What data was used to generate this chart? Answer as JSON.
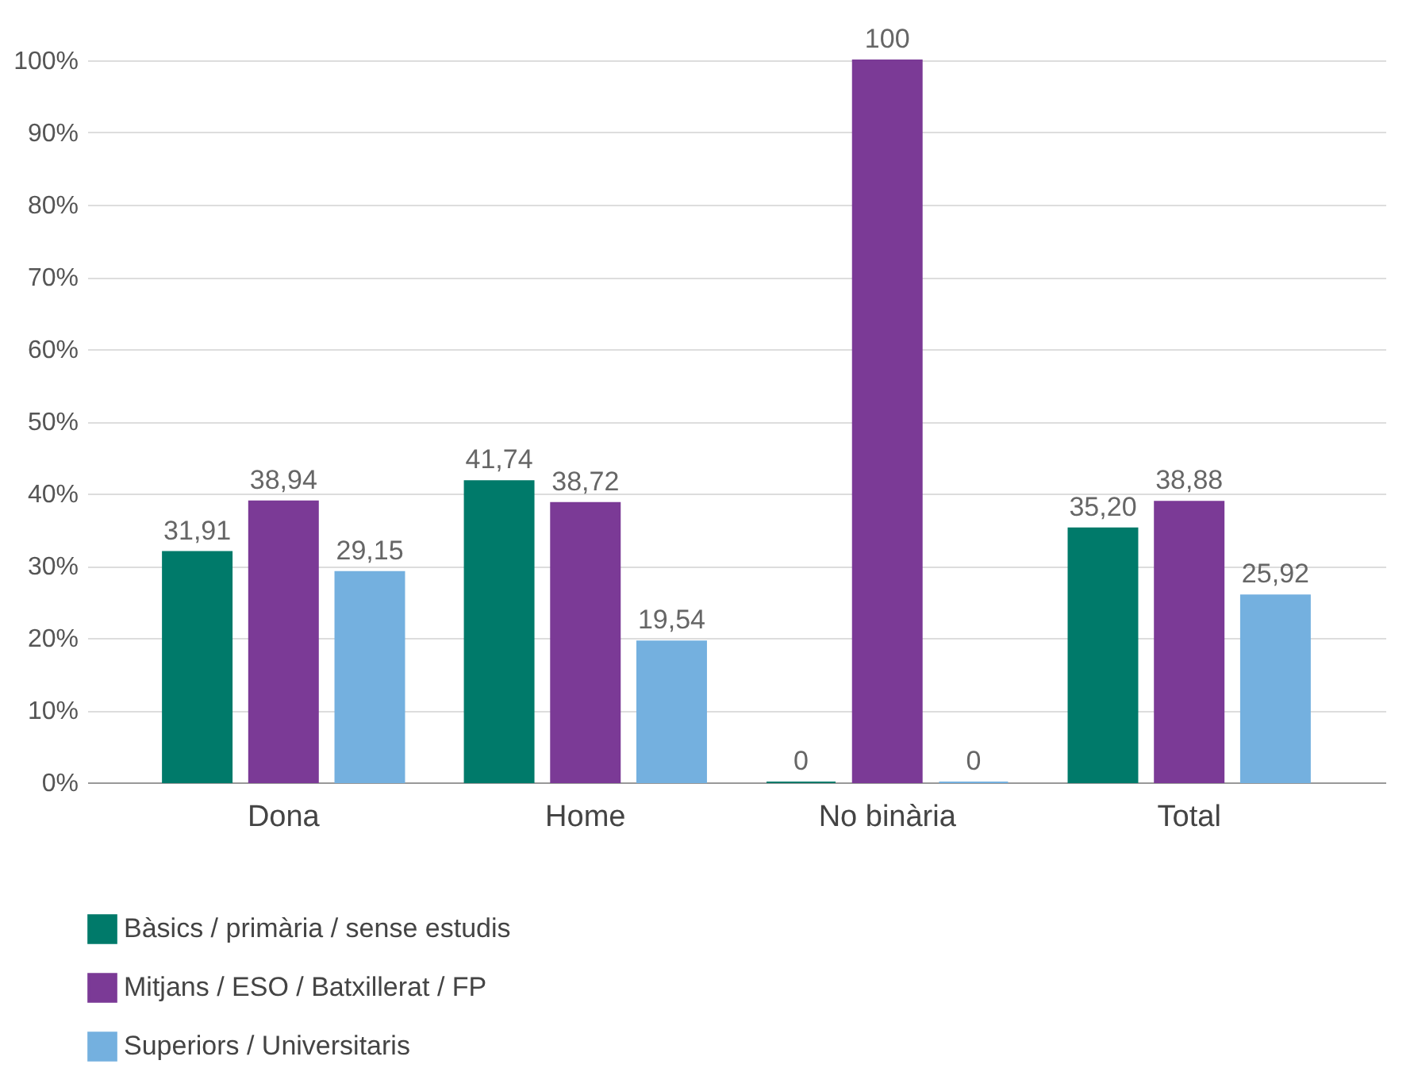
{
  "chart_data": {
    "type": "bar",
    "categories": [
      "Dona",
      "Home",
      "No binària",
      "Total"
    ],
    "series": [
      {
        "name": "Bàsics / primària / sense estudis",
        "color": "#007a6a",
        "values": [
          31.91,
          41.74,
          0,
          35.2
        ],
        "value_labels": [
          "31,91",
          "41,74",
          "0",
          "35,20"
        ]
      },
      {
        "name": "Mitjans / ESO / Batxillerat / FP",
        "color": "#7b3a96",
        "values": [
          38.94,
          38.72,
          100,
          38.88
        ],
        "value_labels": [
          "38,94",
          "38,72",
          "100",
          "38,88"
        ]
      },
      {
        "name": "Superiors / Universitaris",
        "color": "#74b0df",
        "values": [
          29.15,
          19.54,
          0,
          25.92
        ],
        "value_labels": [
          "29,15",
          "19,54",
          "0",
          "25,92"
        ]
      }
    ],
    "ylim": [
      0,
      100
    ],
    "yticks": [
      {
        "value": 0,
        "label": "0%"
      },
      {
        "value": 10,
        "label": "10%"
      },
      {
        "value": 20,
        "label": "20%"
      },
      {
        "value": 30,
        "label": "30%"
      },
      {
        "value": 40,
        "label": "40%"
      },
      {
        "value": 50,
        "label": "50%"
      },
      {
        "value": 60,
        "label": "60%"
      },
      {
        "value": 70,
        "label": "70%"
      },
      {
        "value": 80,
        "label": "80%"
      },
      {
        "value": 90,
        "label": "90%"
      },
      {
        "value": 100,
        "label": "100%"
      }
    ],
    "grid": "y",
    "legend": "bottom left"
  }
}
